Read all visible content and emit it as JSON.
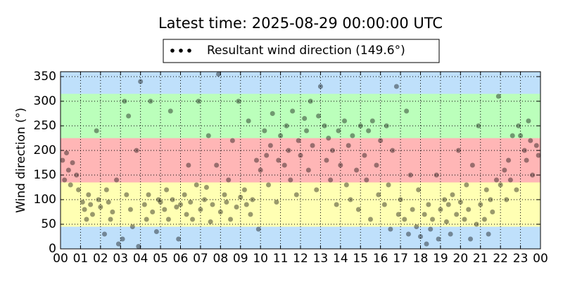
{
  "chart_data": {
    "type": "scatter",
    "title": "Latest time: 2025-08-29 00:00:00 UTC",
    "y_label": "Wind direction (°)",
    "xlim": [
      0,
      24
    ],
    "ylim": [
      0,
      360
    ],
    "xticks": [
      {
        "value": 0,
        "label": "00"
      },
      {
        "value": 1,
        "label": "01"
      },
      {
        "value": 2,
        "label": "02"
      },
      {
        "value": 3,
        "label": "03"
      },
      {
        "value": 4,
        "label": "04"
      },
      {
        "value": 5,
        "label": "05"
      },
      {
        "value": 6,
        "label": "06"
      },
      {
        "value": 7,
        "label": "07"
      },
      {
        "value": 8,
        "label": "08"
      },
      {
        "value": 9,
        "label": "09"
      },
      {
        "value": 10,
        "label": "10"
      },
      {
        "value": 11,
        "label": "11"
      },
      {
        "value": 12,
        "label": "12"
      },
      {
        "value": 13,
        "label": "13"
      },
      {
        "value": 14,
        "label": "14"
      },
      {
        "value": 15,
        "label": "15"
      },
      {
        "value": 16,
        "label": "16"
      },
      {
        "value": 17,
        "label": "17"
      },
      {
        "value": 18,
        "label": "18"
      },
      {
        "value": 19,
        "label": "19"
      },
      {
        "value": 20,
        "label": "20"
      },
      {
        "value": 21,
        "label": "21"
      },
      {
        "value": 22,
        "label": "22"
      },
      {
        "value": 23,
        "label": "23"
      },
      {
        "value": 24,
        "label": "00"
      }
    ],
    "yticks": [
      0,
      50,
      100,
      150,
      200,
      250,
      300,
      350
    ],
    "grid": true,
    "legend": "upper center",
    "bands": [
      {
        "from": 0,
        "to": 45,
        "color": "#bfe0fb"
      },
      {
        "from": 45,
        "to": 135,
        "color": "#ffffb3"
      },
      {
        "from": 135,
        "to": 225,
        "color": "#ffb6b6"
      },
      {
        "from": 225,
        "to": 315,
        "color": "#bbffbb"
      },
      {
        "from": 315,
        "to": 360,
        "color": "#bfe0fb"
      }
    ],
    "x": [
      0.1,
      0.2,
      0.3,
      0.4,
      0.5,
      0.6,
      0.8,
      0.9,
      1.1,
      1.2,
      1.3,
      1.4,
      1.5,
      1.6,
      1.8,
      1.9,
      2.0,
      2.2,
      2.3,
      2.4,
      2.5,
      2.6,
      2.8,
      2.9,
      3.1,
      3.2,
      3.3,
      3.4,
      3.5,
      3.6,
      3.8,
      3.9,
      4.0,
      4.2,
      4.3,
      4.4,
      4.5,
      4.6,
      4.8,
      4.9,
      5.0,
      5.2,
      5.3,
      5.4,
      5.5,
      5.6,
      5.8,
      5.9,
      6.0,
      6.2,
      6.3,
      6.4,
      6.5,
      6.6,
      6.8,
      6.9,
      7.0,
      7.2,
      7.3,
      7.4,
      7.5,
      7.6,
      7.8,
      7.9,
      8.0,
      8.2,
      8.3,
      8.4,
      8.5,
      8.6,
      8.8,
      8.9,
      9.0,
      9.2,
      9.3,
      9.4,
      9.5,
      9.6,
      9.8,
      9.9,
      10.0,
      10.2,
      10.3,
      10.4,
      10.5,
      10.6,
      10.8,
      10.9,
      11.0,
      11.2,
      11.3,
      11.4,
      11.5,
      11.6,
      11.8,
      11.9,
      12.0,
      12.2,
      12.3,
      12.4,
      12.5,
      12.6,
      12.8,
      12.9,
      13.0,
      13.2,
      13.3,
      13.4,
      13.5,
      13.6,
      13.8,
      13.9,
      14.0,
      14.2,
      14.3,
      14.4,
      14.5,
      14.6,
      14.8,
      14.9,
      15.0,
      15.2,
      15.3,
      15.4,
      15.5,
      15.6,
      15.8,
      15.9,
      16.0,
      16.2,
      16.3,
      16.4,
      16.5,
      16.6,
      16.8,
      16.9,
      17.0,
      17.2,
      17.3,
      17.4,
      17.5,
      17.6,
      17.8,
      17.9,
      18.0,
      18.2,
      18.3,
      18.4,
      18.5,
      18.6,
      18.8,
      18.9,
      19.0,
      19.2,
      19.3,
      19.4,
      19.5,
      19.6,
      19.8,
      19.9,
      20.0,
      20.2,
      20.3,
      20.4,
      20.5,
      20.6,
      20.8,
      20.9,
      21.0,
      21.2,
      21.3,
      21.4,
      21.5,
      21.6,
      21.8,
      21.9,
      22.0,
      22.2,
      22.3,
      22.4,
      22.5,
      22.6,
      22.8,
      22.9,
      23.0,
      23.2,
      23.3,
      23.4,
      23.5,
      23.6,
      23.8,
      23.9
    ],
    "series": [
      {
        "name": "Resultant wind direction (149.6°)",
        "color": "#000000",
        "values": [
          180,
          140,
          195,
          160,
          130,
          175,
          150,
          120,
          95,
          80,
          60,
          110,
          90,
          70,
          240,
          100,
          85,
          30,
          120,
          95,
          60,
          75,
          140,
          10,
          20,
          300,
          110,
          270,
          80,
          45,
          200,
          5,
          340,
          90,
          60,
          110,
          300,
          75,
          35,
          100,
          95,
          80,
          120,
          60,
          280,
          100,
          85,
          20,
          90,
          110,
          70,
          170,
          95,
          60,
          130,
          300,
          80,
          100,
          125,
          230,
          55,
          90,
          170,
          355,
          75,
          110,
          95,
          140,
          60,
          220,
          85,
          300,
          105,
          120,
          90,
          260,
          70,
          100,
          180,
          40,
          160,
          240,
          190,
          130,
          210,
          275,
          95,
          180,
          230,
          170,
          250,
          200,
          140,
          280,
          110,
          220,
          190,
          265,
          240,
          160,
          300,
          210,
          120,
          270,
          330,
          250,
          180,
          225,
          140,
          200,
          90,
          240,
          170,
          260,
          130,
          210,
          100,
          230,
          160,
          80,
          250,
          190,
          140,
          240,
          60,
          260,
          170,
          110,
          220,
          90,
          250,
          130,
          40,
          200,
          330,
          70,
          100,
          60,
          280,
          30,
          150,
          80,
          45,
          120,
          25,
          70,
          10,
          90,
          40,
          60,
          150,
          20,
          80,
          100,
          55,
          90,
          30,
          110,
          70,
          200,
          95,
          60,
          130,
          80,
          20,
          170,
          50,
          250,
          90,
          60,
          120,
          30,
          100,
          75,
          140,
          310,
          130,
          160,
          100,
          180,
          140,
          230,
          120,
          250,
          230,
          200,
          180,
          260,
          220,
          150,
          210,
          190
        ]
      }
    ]
  }
}
